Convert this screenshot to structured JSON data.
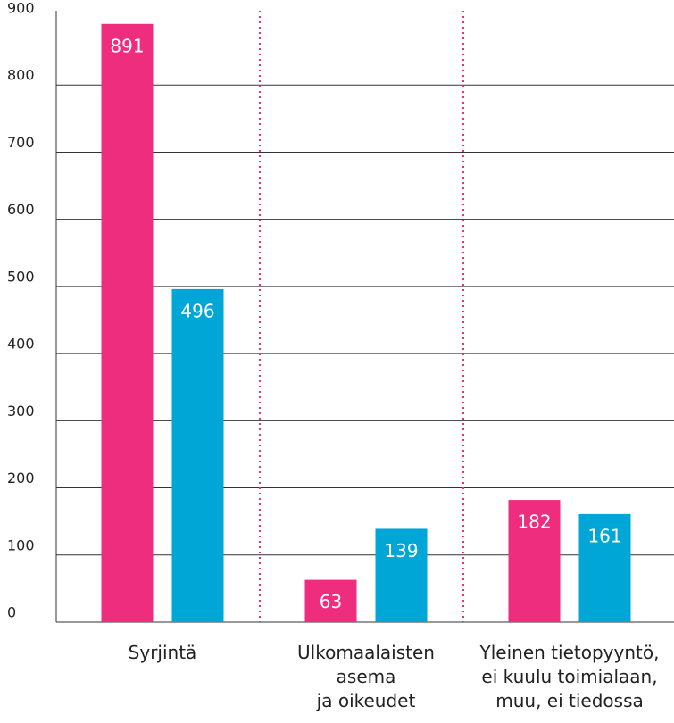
{
  "chart_data": {
    "type": "bar",
    "categories": [
      "Syrjintä",
      "Ulkomaalaisten\nasema\nja oikeudet",
      "Yleinen tietopyyntö,\nei kuulu toimialaan,\nmuu, ei tiedossa"
    ],
    "series": [
      {
        "color": "#ee2d7f",
        "values": [
          891,
          63,
          182
        ]
      },
      {
        "color": "#00a6d6",
        "values": [
          496,
          139,
          161
        ]
      }
    ],
    "ylim": [
      0,
      900
    ],
    "yticks": [
      0,
      100,
      200,
      300,
      400,
      500,
      600,
      700,
      800,
      900
    ],
    "grid": true,
    "separator_color": "#e8336f"
  }
}
